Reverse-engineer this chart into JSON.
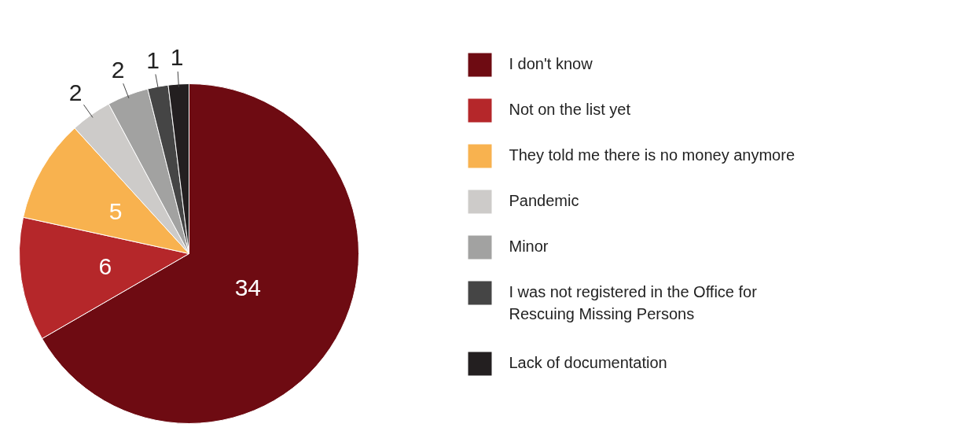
{
  "chart_data": {
    "type": "pie",
    "categories": [
      "I don't know",
      "Not on the list yet",
      "They told me there is no money anymore",
      "Pandemic",
      "Minor",
      "I was not registered in the Office for Rescuing Missing Persons",
      "Lack of documentation"
    ],
    "values": [
      34,
      6,
      5,
      2,
      2,
      1,
      1
    ],
    "colors": [
      "#6e0b12",
      "#b5272a",
      "#f8b24f",
      "#cdcbc9",
      "#a2a2a1",
      "#454545",
      "#231f20"
    ],
    "data_labels": true,
    "legend": "right"
  }
}
